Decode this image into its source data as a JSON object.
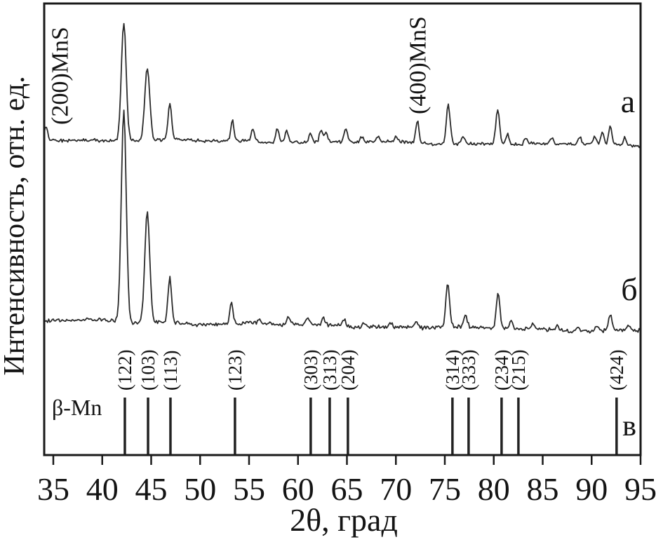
{
  "chart_data": {
    "type": "line",
    "title": "",
    "xlabel": "2θ, град",
    "ylabel": "Интенсивность, отн. ед.",
    "xlim": [
      34.07,
      95.0
    ],
    "x_ticks": [
      35,
      40,
      45,
      50,
      55,
      60,
      65,
      70,
      75,
      80,
      85,
      90,
      95
    ],
    "grid": false,
    "y_axis": "relative intensity, no numeric ticks",
    "annotations": {
      "mns_200": "(200)MnS",
      "mns_400": "(400)MnS",
      "beta_mn": "β-Mn",
      "series_a": "а",
      "series_b": "б",
      "series_v": "в"
    },
    "series": [
      {
        "name": "а",
        "kind": "xrd-trace",
        "peaks_2theta_intensity": [
          [
            34.25,
            20
          ],
          [
            42.2,
            168
          ],
          [
            44.6,
            104
          ],
          [
            46.9,
            50
          ],
          [
            53.3,
            28
          ],
          [
            55.4,
            17
          ],
          [
            57.9,
            22
          ],
          [
            58.85,
            19
          ],
          [
            61.3,
            12
          ],
          [
            62.35,
            17
          ],
          [
            62.85,
            14
          ],
          [
            64.9,
            21
          ],
          [
            66.5,
            8
          ],
          [
            68.2,
            7
          ],
          [
            70.0,
            6
          ],
          [
            72.2,
            33
          ],
          [
            75.35,
            57
          ],
          [
            76.9,
            12
          ],
          [
            80.4,
            52
          ],
          [
            81.4,
            15
          ],
          [
            83.3,
            9
          ],
          [
            85.9,
            7
          ],
          [
            88.8,
            11
          ],
          [
            90.3,
            13
          ],
          [
            91.1,
            17
          ],
          [
            91.9,
            24
          ],
          [
            93.4,
            9
          ]
        ]
      },
      {
        "name": "б",
        "kind": "xrd-trace",
        "peaks_2theta_intensity": [
          [
            42.2,
            303
          ],
          [
            44.6,
            158
          ],
          [
            46.9,
            64
          ],
          [
            53.2,
            33
          ],
          [
            56.0,
            7
          ],
          [
            59.0,
            10
          ],
          [
            61.0,
            11
          ],
          [
            62.6,
            9
          ],
          [
            64.7,
            10
          ],
          [
            66.8,
            8
          ],
          [
            69.5,
            6
          ],
          [
            72.1,
            8
          ],
          [
            75.3,
            62
          ],
          [
            77.1,
            17
          ],
          [
            80.45,
            51
          ],
          [
            81.8,
            12
          ],
          [
            84.0,
            7
          ],
          [
            86.5,
            6
          ],
          [
            88.6,
            8
          ],
          [
            90.5,
            7
          ],
          [
            91.9,
            23
          ],
          [
            93.8,
            6
          ]
        ]
      }
    ],
    "reference_bars": {
      "phase": "β-Mn",
      "row_label": "в",
      "positions_2theta_hkl": [
        [
          42.31,
          "(122)"
        ],
        [
          44.68,
          "(103)"
        ],
        [
          46.97,
          "(113)"
        ],
        [
          53.56,
          "(123)"
        ],
        [
          61.3,
          "(303)"
        ],
        [
          63.24,
          "(313)"
        ],
        [
          65.1,
          "(204)"
        ],
        [
          75.78,
          "(314)"
        ],
        [
          77.43,
          "(333)"
        ],
        [
          80.8,
          "(234)"
        ],
        [
          82.52,
          "(215)"
        ],
        [
          92.55,
          "(424)"
        ]
      ]
    }
  }
}
